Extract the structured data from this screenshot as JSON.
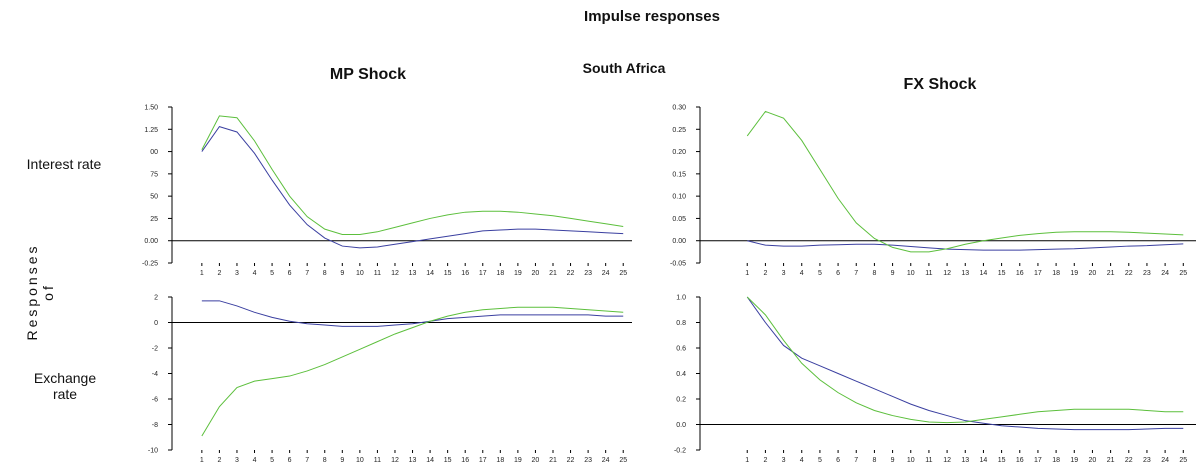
{
  "title": "Impulse responses",
  "region": "South Africa",
  "columns": [
    "MP Shock",
    "FX Shock"
  ],
  "rows": [
    "Interest rate",
    "Exchange rate"
  ],
  "y_axis_label": "Responses of",
  "chart_data": [
    {
      "type": "line",
      "x": [
        1,
        2,
        3,
        4,
        5,
        6,
        7,
        8,
        9,
        10,
        11,
        12,
        13,
        14,
        15,
        16,
        17,
        18,
        19,
        20,
        21,
        22,
        23,
        24,
        25
      ],
      "xlim": [
        -0.7,
        25.5
      ],
      "xticks": [
        1,
        2,
        3,
        4,
        5,
        6,
        7,
        8,
        9,
        10,
        11,
        12,
        13,
        14,
        15,
        16,
        17,
        18,
        19,
        20,
        21,
        22,
        23,
        24,
        25
      ],
      "ylim": [
        -0.25,
        1.5
      ],
      "yticks": [
        {
          "value": 1.5,
          "label": "1.50"
        },
        1.25,
        {
          "value": 1.0,
          "label": "00"
        },
        {
          "value": 0.75,
          "label": "75"
        },
        {
          "value": 0.5,
          "label": "50"
        },
        {
          "value": 0.25,
          "label": "25"
        },
        {
          "value": 0,
          "label": "0.00"
        },
        -0.25
      ],
      "series": [
        {
          "color": "#3a3fa0",
          "values": [
            1.0,
            1.28,
            1.22,
            0.98,
            0.68,
            0.4,
            0.18,
            0.03,
            -0.06,
            -0.08,
            -0.07,
            -0.04,
            -0.01,
            0.02,
            0.05,
            0.08,
            0.11,
            0.12,
            0.13,
            0.13,
            0.12,
            0.11,
            0.1,
            0.09,
            0.08
          ]
        },
        {
          "color": "#5cbf3c",
          "values": [
            1.02,
            1.4,
            1.38,
            1.12,
            0.8,
            0.5,
            0.27,
            0.13,
            0.07,
            0.07,
            0.1,
            0.15,
            0.2,
            0.25,
            0.29,
            0.32,
            0.33,
            0.33,
            0.32,
            0.3,
            0.28,
            0.25,
            0.22,
            0.19,
            0.16
          ]
        }
      ]
    },
    {
      "type": "line",
      "x": [
        1,
        2,
        3,
        4,
        5,
        6,
        7,
        8,
        9,
        10,
        11,
        12,
        13,
        14,
        15,
        16,
        17,
        18,
        19,
        20,
        21,
        22,
        23,
        24,
        25
      ],
      "xlim": [
        -1.6,
        25.7
      ],
      "xticks": [
        1,
        2,
        3,
        4,
        5,
        6,
        7,
        8,
        9,
        10,
        11,
        12,
        13,
        14,
        15,
        16,
        17,
        18,
        19,
        20,
        21,
        22,
        23,
        24,
        25
      ],
      "ylim": [
        -0.05,
        0.3
      ],
      "yticks": [
        {
          "value": 0.3,
          "label": "0.30"
        },
        0.25,
        {
          "value": 0.2,
          "label": "0.20"
        },
        0.15,
        {
          "value": 0.1,
          "label": "0.10"
        },
        0.05,
        {
          "value": 0,
          "label": "0.00"
        },
        -0.05
      ],
      "series": [
        {
          "color": "#3a3fa0",
          "values": [
            0.0,
            -0.01,
            -0.012,
            -0.012,
            -0.01,
            -0.009,
            -0.008,
            -0.008,
            -0.01,
            -0.013,
            -0.016,
            -0.019,
            -0.02,
            -0.021,
            -0.021,
            -0.021,
            -0.02,
            -0.019,
            -0.018,
            -0.016,
            -0.014,
            -0.012,
            -0.011,
            -0.009,
            -0.007
          ]
        },
        {
          "color": "#5cbf3c",
          "values": [
            0.235,
            0.29,
            0.275,
            0.225,
            0.16,
            0.095,
            0.04,
            0.005,
            -0.015,
            -0.025,
            -0.025,
            -0.018,
            -0.008,
            0.0,
            0.006,
            0.012,
            0.016,
            0.019,
            0.02,
            0.02,
            0.02,
            0.019,
            0.017,
            0.015,
            0.013
          ]
        }
      ]
    },
    {
      "type": "line",
      "x": [
        1,
        2,
        3,
        4,
        5,
        6,
        7,
        8,
        9,
        10,
        11,
        12,
        13,
        14,
        15,
        16,
        17,
        18,
        19,
        20,
        21,
        22,
        23,
        24,
        25
      ],
      "xlim": [
        -0.7,
        25.5
      ],
      "xticks": [
        1,
        2,
        3,
        4,
        5,
        6,
        7,
        8,
        9,
        10,
        11,
        12,
        13,
        14,
        15,
        16,
        17,
        18,
        19,
        20,
        21,
        22,
        23,
        24,
        25
      ],
      "ylim": [
        -10,
        2
      ],
      "yticks": [
        2,
        0,
        -2,
        -4,
        -6,
        -8,
        -10
      ],
      "series": [
        {
          "color": "#3a3fa0",
          "values": [
            1.7,
            1.7,
            1.3,
            0.8,
            0.4,
            0.1,
            -0.1,
            -0.2,
            -0.3,
            -0.3,
            -0.3,
            -0.2,
            -0.1,
            0.1,
            0.3,
            0.4,
            0.5,
            0.6,
            0.6,
            0.6,
            0.6,
            0.6,
            0.6,
            0.5,
            0.5
          ]
        },
        {
          "color": "#5cbf3c",
          "values": [
            -8.9,
            -6.6,
            -5.1,
            -4.6,
            -4.4,
            -4.2,
            -3.8,
            -3.3,
            -2.7,
            -2.1,
            -1.5,
            -0.9,
            -0.4,
            0.1,
            0.5,
            0.8,
            1.0,
            1.1,
            1.2,
            1.2,
            1.2,
            1.1,
            1.0,
            0.9,
            0.8
          ]
        }
      ]
    },
    {
      "type": "line",
      "x": [
        1,
        2,
        3,
        4,
        5,
        6,
        7,
        8,
        9,
        10,
        11,
        12,
        13,
        14,
        15,
        16,
        17,
        18,
        19,
        20,
        21,
        22,
        23,
        24,
        25
      ],
      "xlim": [
        -1.6,
        25.7
      ],
      "xticks": [
        1,
        2,
        3,
        4,
        5,
        6,
        7,
        8,
        9,
        10,
        11,
        12,
        13,
        14,
        15,
        16,
        17,
        18,
        19,
        20,
        21,
        22,
        23,
        24,
        25
      ],
      "ylim": [
        -0.2,
        1.0
      ],
      "yticks": [
        {
          "value": 1.0,
          "label": "1.0"
        },
        0.8,
        0.6,
        0.4,
        0.2,
        {
          "value": 0,
          "label": "0.0"
        },
        -0.2
      ],
      "series": [
        {
          "color": "#3a3fa0",
          "values": [
            1.0,
            0.8,
            0.62,
            0.52,
            0.46,
            0.4,
            0.34,
            0.28,
            0.22,
            0.16,
            0.11,
            0.07,
            0.03,
            0.01,
            -0.01,
            -0.02,
            -0.03,
            -0.035,
            -0.04,
            -0.04,
            -0.04,
            -0.04,
            -0.035,
            -0.03,
            -0.03
          ]
        },
        {
          "color": "#5cbf3c",
          "values": [
            1.0,
            0.86,
            0.66,
            0.48,
            0.35,
            0.25,
            0.17,
            0.11,
            0.07,
            0.04,
            0.02,
            0.015,
            0.02,
            0.04,
            0.06,
            0.08,
            0.1,
            0.11,
            0.12,
            0.12,
            0.12,
            0.12,
            0.11,
            0.1,
            0.1
          ]
        }
      ]
    }
  ]
}
